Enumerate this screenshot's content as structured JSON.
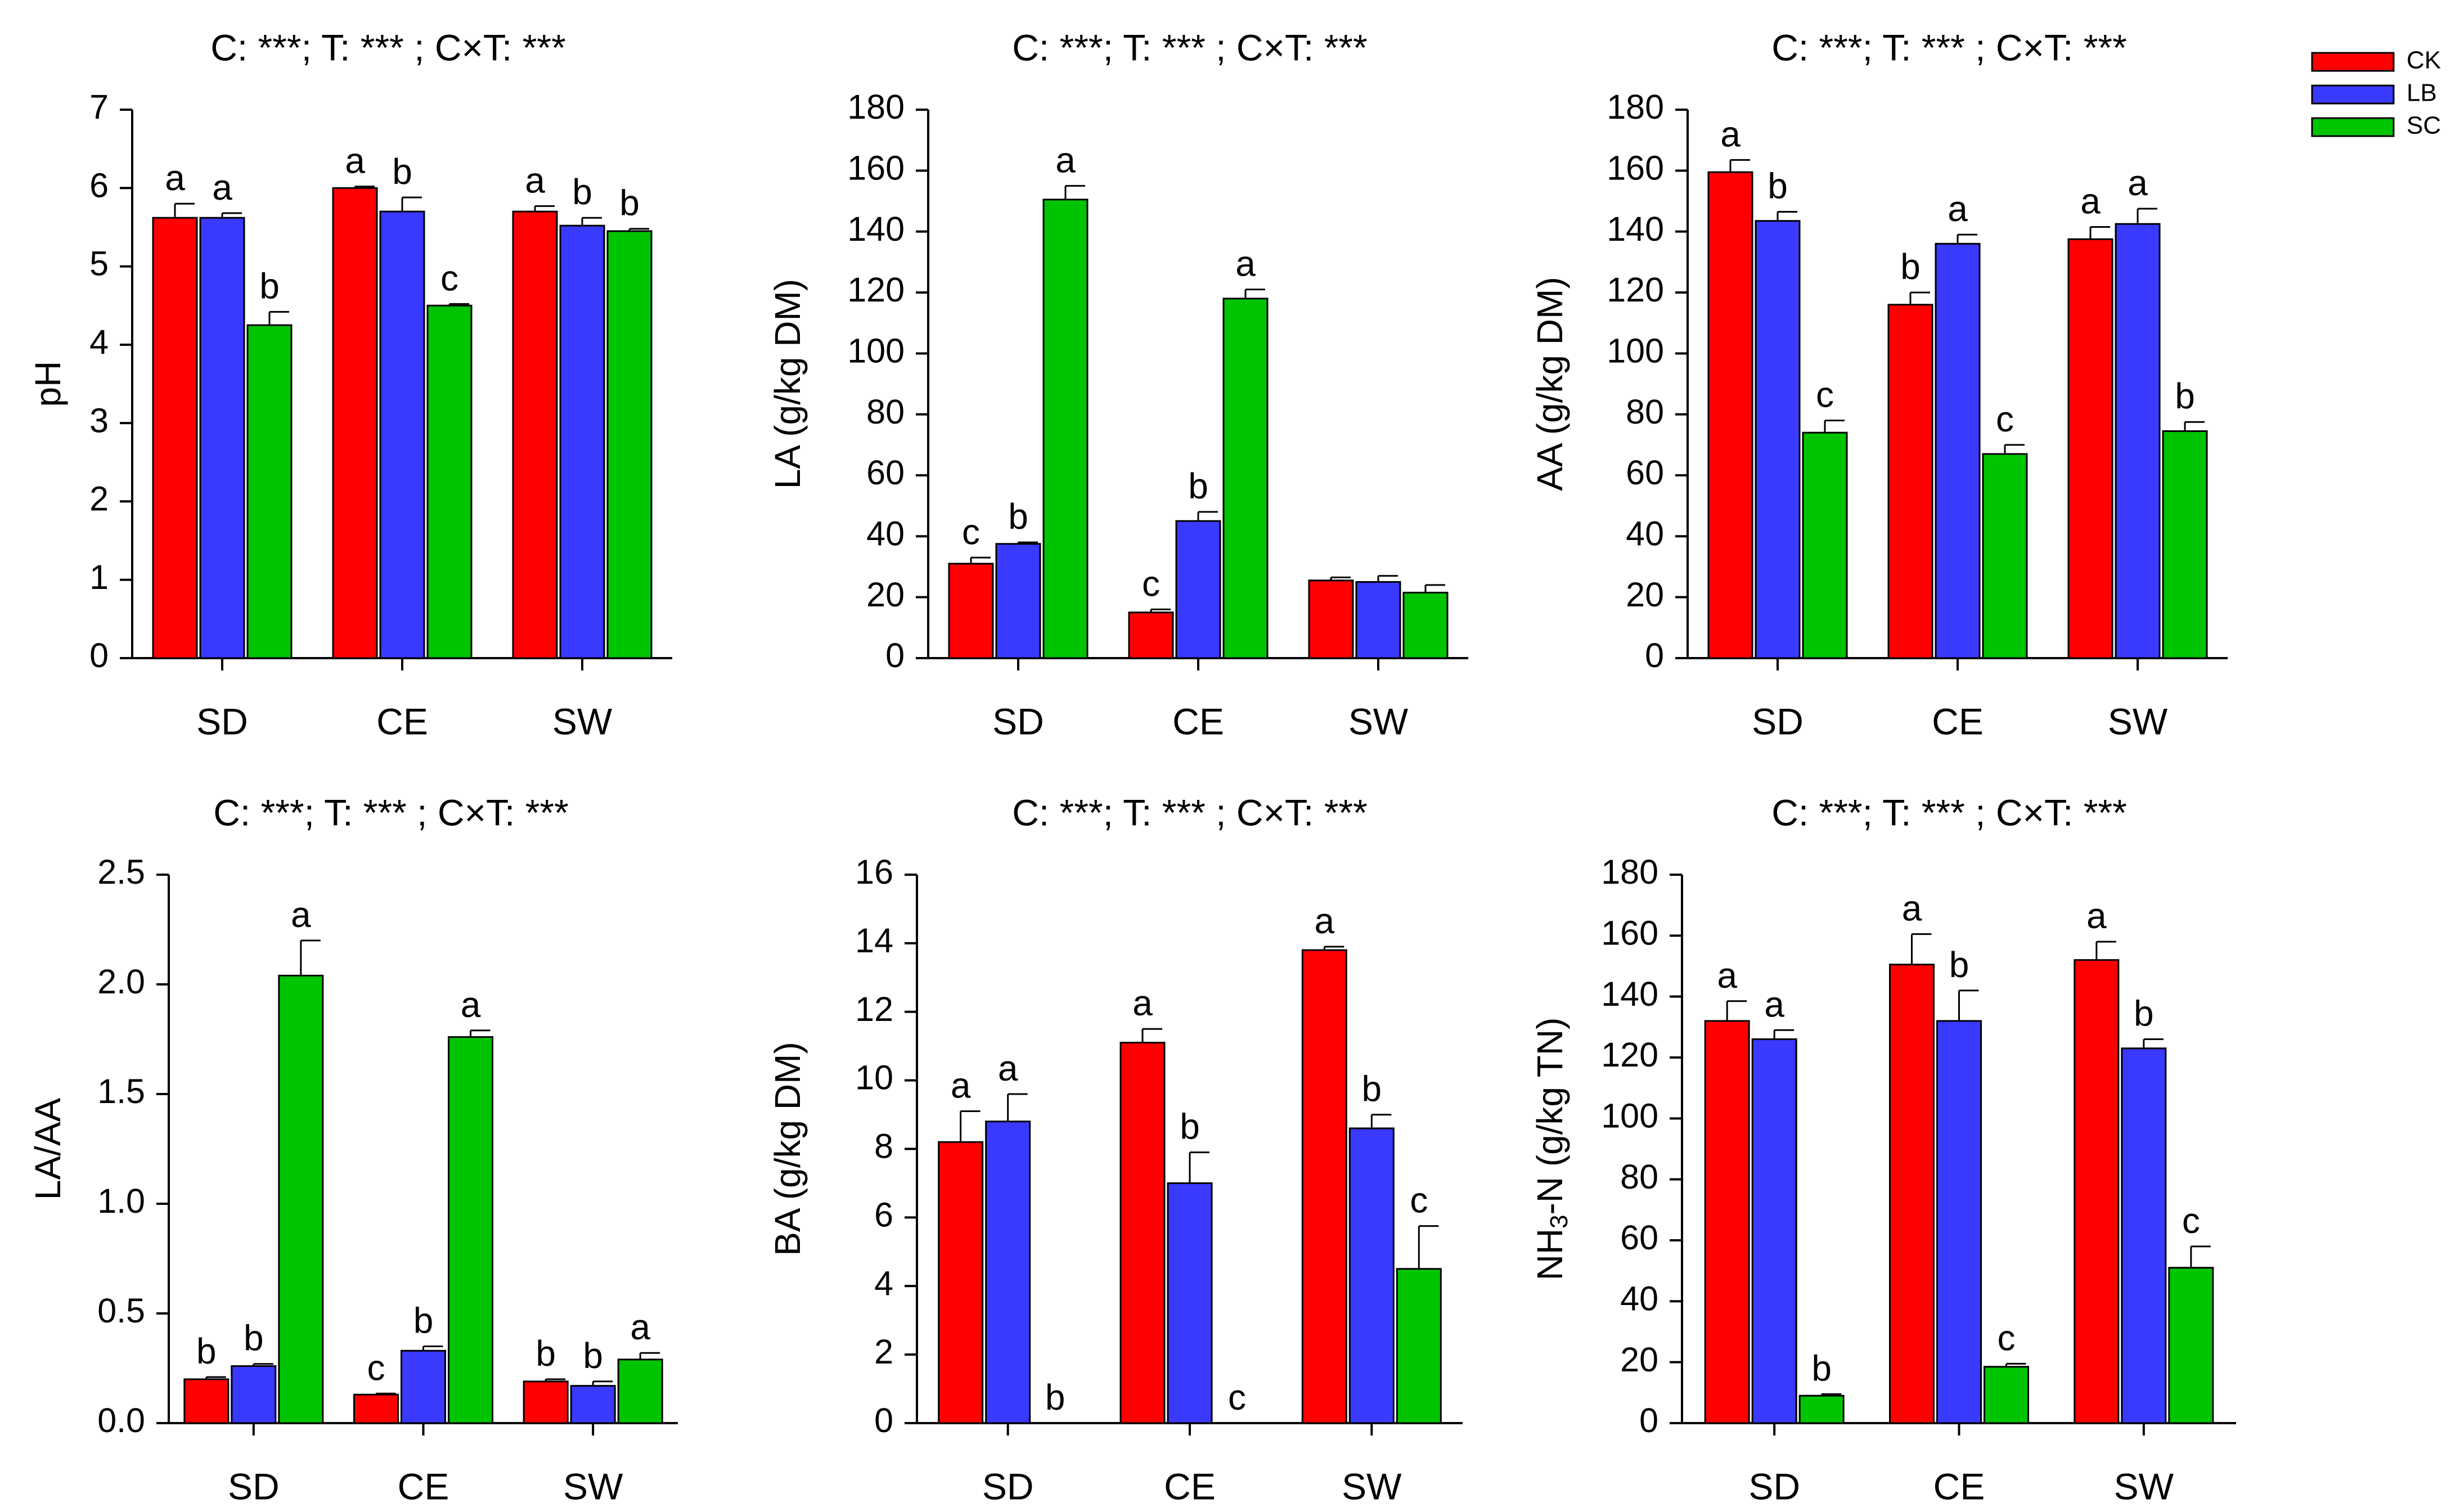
{
  "legend": {
    "items": [
      {
        "label": "CK",
        "color": "#ff0000"
      },
      {
        "label": "LB",
        "color": "#3a3aff"
      },
      {
        "label": "SC",
        "color": "#00c400"
      }
    ]
  },
  "chart_data": [
    {
      "type": "bar",
      "title": "C: ***; T: *** ; C×T: ***",
      "ylabel": "pH",
      "xlabel": "",
      "categories": [
        "SD",
        "CE",
        "SW"
      ],
      "ylim": [
        0,
        7
      ],
      "yticks": [
        "0",
        "1",
        "2",
        "3",
        "4",
        "5",
        "6",
        "7"
      ],
      "series": [
        {
          "name": "CK",
          "values": [
            5.62,
            6.0,
            5.7
          ],
          "errors": [
            0.18,
            0.02,
            0.07
          ],
          "labels": [
            "a",
            "a",
            "a"
          ]
        },
        {
          "name": "LB",
          "values": [
            5.62,
            5.7,
            5.52
          ],
          "errors": [
            0.06,
            0.18,
            0.1
          ],
          "labels": [
            "a",
            "b",
            "b"
          ]
        },
        {
          "name": "SC",
          "values": [
            4.25,
            4.5,
            5.45
          ],
          "errors": [
            0.17,
            0.02,
            0.03
          ],
          "labels": [
            "b",
            "c",
            "b"
          ]
        }
      ]
    },
    {
      "type": "bar",
      "title": "C: ***; T: *** ; C×T: ***",
      "ylabel": "LA (g/kg DM)",
      "xlabel": "",
      "categories": [
        "SD",
        "CE",
        "SW"
      ],
      "ylim": [
        0,
        180
      ],
      "yticks": [
        "0",
        "20",
        "40",
        "60",
        "80",
        "100",
        "120",
        "140",
        "160",
        "180"
      ],
      "series": [
        {
          "name": "CK",
          "values": [
            31,
            15,
            25.5
          ],
          "errors": [
            2,
            1,
            1
          ],
          "labels": [
            "c",
            "c",
            ""
          ]
        },
        {
          "name": "LB",
          "values": [
            37.5,
            45,
            25
          ],
          "errors": [
            0.5,
            3,
            2
          ],
          "labels": [
            "b",
            "b",
            ""
          ]
        },
        {
          "name": "SC",
          "values": [
            150.5,
            118,
            21.5
          ],
          "errors": [
            4.5,
            3,
            2.5
          ],
          "labels": [
            "a",
            "a",
            ""
          ]
        }
      ]
    },
    {
      "type": "bar",
      "title": "C: ***; T: *** ; C×T: ***",
      "ylabel": "AA (g/kg DM)",
      "xlabel": "",
      "categories": [
        "SD",
        "CE",
        "SW"
      ],
      "ylim": [
        0,
        180
      ],
      "yticks": [
        "0",
        "20",
        "40",
        "60",
        "80",
        "100",
        "120",
        "140",
        "160",
        "180"
      ],
      "series": [
        {
          "name": "CK",
          "values": [
            159.5,
            116,
            137.5
          ],
          "errors": [
            4,
            4,
            4
          ],
          "labels": [
            "a",
            "b",
            "a"
          ]
        },
        {
          "name": "LB",
          "values": [
            143.5,
            136,
            142.5
          ],
          "errors": [
            3,
            3,
            5
          ],
          "labels": [
            "b",
            "a",
            "a"
          ]
        },
        {
          "name": "SC",
          "values": [
            74,
            67,
            74.5
          ],
          "errors": [
            4,
            3,
            3
          ],
          "labels": [
            "c",
            "c",
            "b"
          ]
        }
      ]
    },
    {
      "type": "bar",
      "title": "C: ***; T: *** ; C×T: ***",
      "ylabel": "LA/AA",
      "xlabel": "",
      "categories": [
        "SD",
        "CE",
        "SW"
      ],
      "ylim": [
        0,
        2.5
      ],
      "yticks": [
        "0.0",
        "0.5",
        "1.0",
        "1.5",
        "2.0",
        "2.5"
      ],
      "series": [
        {
          "name": "CK",
          "values": [
            0.2,
            0.13,
            0.19
          ],
          "errors": [
            0.01,
            0.005,
            0.01
          ],
          "labels": [
            "b",
            "c",
            "b"
          ]
        },
        {
          "name": "LB",
          "values": [
            0.26,
            0.33,
            0.17
          ],
          "errors": [
            0.01,
            0.02,
            0.02
          ],
          "labels": [
            "b",
            "b",
            "b"
          ]
        },
        {
          "name": "SC",
          "values": [
            2.04,
            1.76,
            0.29
          ],
          "errors": [
            0.16,
            0.03,
            0.03
          ],
          "labels": [
            "a",
            "a",
            "a"
          ]
        }
      ]
    },
    {
      "type": "bar",
      "title": "C: ***; T: *** ; C×T: ***",
      "ylabel": "BA (g/kg DM)",
      "xlabel": "",
      "categories": [
        "SD",
        "CE",
        "SW"
      ],
      "ylim": [
        0,
        16
      ],
      "yticks": [
        "0",
        "2",
        "4",
        "6",
        "8",
        "10",
        "12",
        "14",
        "16"
      ],
      "series": [
        {
          "name": "CK",
          "values": [
            8.2,
            11.1,
            13.8
          ],
          "errors": [
            0.9,
            0.4,
            0.1
          ],
          "labels": [
            "a",
            "a",
            "a"
          ]
        },
        {
          "name": "LB",
          "values": [
            8.8,
            7.0,
            8.6
          ],
          "errors": [
            0.8,
            0.9,
            0.4
          ],
          "labels": [
            "a",
            "b",
            "b"
          ]
        },
        {
          "name": "SC",
          "values": [
            0,
            0,
            4.5
          ],
          "errors": [
            0,
            0,
            1.25
          ],
          "labels": [
            "b",
            "c",
            "c"
          ]
        }
      ]
    },
    {
      "type": "bar",
      "title": "C: ***; T: *** ; C×T: ***",
      "ylabel": "NH",
      "ylabel_sub": "3",
      "ylabel_rest": "-N (g/kg TN)",
      "xlabel": "",
      "categories": [
        "SD",
        "CE",
        "SW"
      ],
      "ylim": [
        0,
        180
      ],
      "yticks": [
        "0",
        "20",
        "40",
        "60",
        "80",
        "100",
        "120",
        "140",
        "160",
        "180"
      ],
      "series": [
        {
          "name": "CK",
          "values": [
            132,
            150.5,
            152
          ],
          "errors": [
            6.5,
            10,
            6
          ],
          "labels": [
            "a",
            "a",
            "a"
          ]
        },
        {
          "name": "LB",
          "values": [
            126,
            132,
            123
          ],
          "errors": [
            3,
            10,
            3
          ],
          "labels": [
            "a",
            "b",
            "b"
          ]
        },
        {
          "name": "SC",
          "values": [
            9,
            18.5,
            51
          ],
          "errors": [
            0.5,
            1,
            7
          ],
          "labels": [
            "b",
            "c",
            "c"
          ]
        }
      ]
    }
  ]
}
